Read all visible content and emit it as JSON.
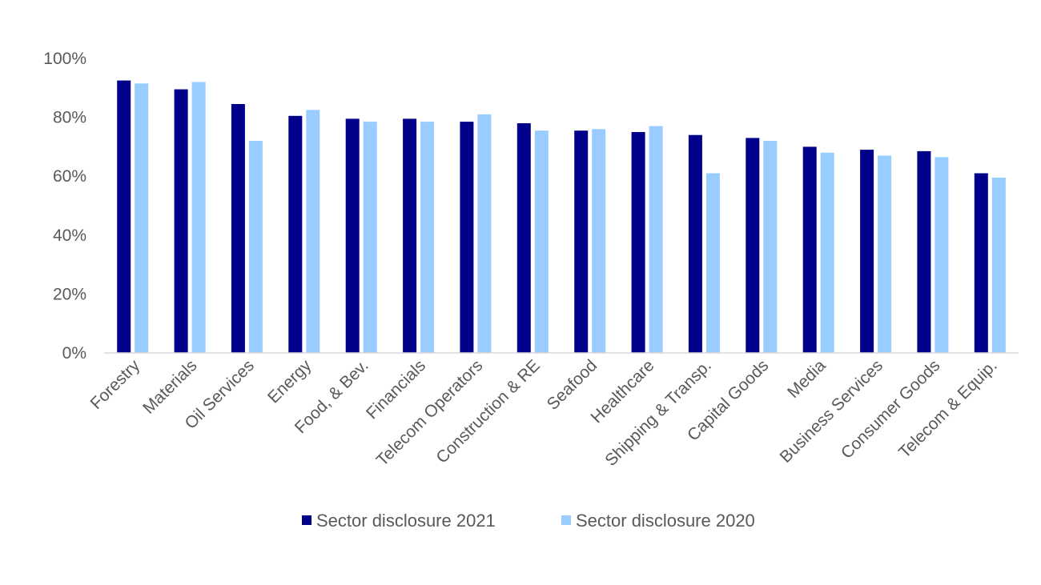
{
  "chart_data": {
    "type": "bar",
    "categories": [
      "Forestry",
      "Materials",
      "Oil Services",
      "Energy",
      "Food, & Bev.",
      "Financials",
      "Telecom Operators",
      "Construction & RE",
      "Seafood",
      "Healthcare",
      "Shipping & Transp.",
      "Capital Goods",
      "Media",
      "Business Services",
      "Consumer Goods",
      "Telecom & Equip."
    ],
    "series": [
      {
        "name": "Sector disclosure 2021",
        "color": "#00008B",
        "values": [
          92.5,
          89.5,
          84.5,
          80.5,
          79.5,
          79.5,
          78.5,
          78,
          75.5,
          75,
          74,
          73,
          70,
          69,
          68.5,
          61
        ]
      },
      {
        "name": "Sector disclosure 2020",
        "color": "#99CCFF",
        "values": [
          91.5,
          92,
          72,
          82.5,
          78.5,
          78.5,
          81,
          75.5,
          76,
          77,
          61,
          72,
          68,
          67,
          66.5,
          59.5
        ]
      }
    ],
    "yticks": [
      "0%",
      "20%",
      "40%",
      "60%",
      "80%",
      "100%"
    ],
    "ylim": [
      0,
      100
    ],
    "grid": false,
    "legend_position": "bottom-center",
    "title": "",
    "xlabel": "",
    "ylabel": ""
  }
}
